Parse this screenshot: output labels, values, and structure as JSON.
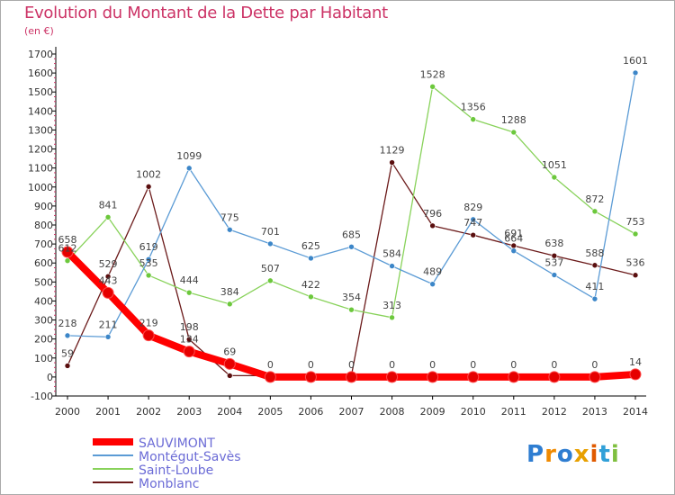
{
  "header": {
    "title": "Evolution du Montant de la Dette par Habitant",
    "subtitle": "(en €)"
  },
  "logo": {
    "text": "Proxiti",
    "letters": [
      "P",
      "r",
      "o",
      "x",
      "i",
      "t",
      "i"
    ],
    "colors": [
      "#2e7dd1",
      "#f08a00",
      "#2e7dd1",
      "#e8a000",
      "#e05a00",
      "#30a0d8",
      "#7fbf3f"
    ]
  },
  "colors": {
    "title": "#cc3366",
    "axis": "#000000",
    "grid": "#cccccc"
  },
  "chart_data": {
    "type": "line",
    "title": "Evolution du Montant de la Dette par Habitant",
    "subtitle": "(en €)",
    "xlabel": "",
    "ylabel": "",
    "ylim": [
      -100,
      1700
    ],
    "ytick_step": 100,
    "grid": false,
    "legend_position": "bottom-left",
    "categories": [
      "2000",
      "2001",
      "2002",
      "2003",
      "2004",
      "2005",
      "2006",
      "2007",
      "2008",
      "2009",
      "2010",
      "2011",
      "2012",
      "2013",
      "2014"
    ],
    "series": [
      {
        "name": "Monblanc",
        "color": "#6b1a1a",
        "point_color": "#5a0f0f",
        "width": 1.3,
        "values": [
          59,
          529,
          1002,
          198,
          7,
          7,
          7,
          9,
          1129,
          796,
          747,
          691,
          638,
          588,
          536
        ],
        "labels": [
          "59",
          "529",
          "1002",
          "198",
          "",
          "",
          "",
          "",
          "1129",
          "796",
          "747",
          "691",
          "638",
          "588",
          "536"
        ]
      },
      {
        "name": "Saint-Loube",
        "color": "#88d25a",
        "point_color": "#6cc83c",
        "width": 1.3,
        "values": [
          612,
          841,
          535,
          444,
          384,
          507,
          422,
          354,
          313,
          1528,
          1356,
          1288,
          1051,
          872,
          753
        ],
        "labels": [
          "612",
          "841",
          "535",
          "444",
          "384",
          "507",
          "422",
          "354",
          "313",
          "1528",
          "1356",
          "1288",
          "1051",
          "872",
          "753"
        ]
      },
      {
        "name": "Montégut-Savès",
        "color": "#5b9bd5",
        "point_color": "#3c86c8",
        "width": 1.3,
        "values": [
          218,
          211,
          619,
          1099,
          775,
          701,
          625,
          685,
          584,
          489,
          829,
          664,
          537,
          411,
          1601
        ],
        "labels": [
          "218",
          "211",
          "619",
          "1099",
          "775",
          "701",
          "625",
          "685",
          "584",
          "489",
          "829",
          "664",
          "537",
          "411",
          "1601"
        ]
      },
      {
        "name": "SAUVIMONT",
        "color": "#ff0000",
        "point_color": "#e60000",
        "width": 8,
        "values": [
          658,
          443,
          219,
          134,
          69,
          0,
          0,
          0,
          0,
          0,
          0,
          0,
          0,
          0,
          14
        ],
        "labels": [
          "658",
          "443",
          "219",
          "134",
          "69",
          "0",
          "0",
          "0",
          "0",
          "0",
          "0",
          "0",
          "0",
          "0",
          "14"
        ]
      }
    ]
  },
  "legend": {
    "items": [
      {
        "label": "SAUVIMONT",
        "color": "#ff0000",
        "thick": true
      },
      {
        "label": "Montégut-Savès",
        "color": "#5b9bd5",
        "thick": false
      },
      {
        "label": "Saint-Loube",
        "color": "#88d25a",
        "thick": false
      },
      {
        "label": "Monblanc",
        "color": "#6b1a1a",
        "thick": false
      }
    ]
  }
}
